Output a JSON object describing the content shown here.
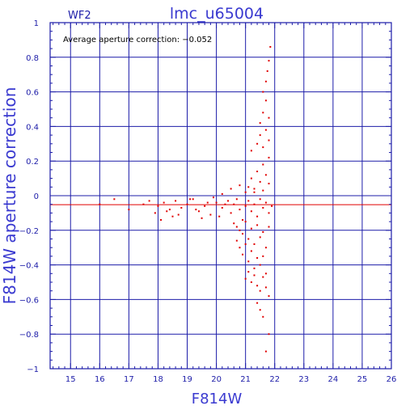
{
  "chart_data": {
    "type": "scatter",
    "title": "lmc_u65004",
    "subtitle": "WF2",
    "annotation": "Average aperture correction: −0.052",
    "xlabel": "F814W",
    "ylabel": "F814W aperture correction",
    "xlim": [
      14.3,
      26
    ],
    "ylim": [
      -1,
      1
    ],
    "x_ticks": [
      15,
      16,
      17,
      18,
      19,
      20,
      21,
      22,
      23,
      24,
      25,
      26
    ],
    "y_ticks": [
      -1,
      -0.8,
      -0.6,
      -0.4,
      -0.2,
      0,
      0.2,
      0.4,
      0.6,
      0.8,
      1
    ],
    "y_tick_labels": [
      "−1",
      "−0.8",
      "−0.6",
      "−0.4",
      "−0.2",
      "0",
      "0.2",
      "0.4",
      "0.6",
      "0.8",
      "1"
    ],
    "grid": true,
    "reference_lines": {
      "average_correction": -0.052,
      "zero": 0,
      "vertical_x": 21
    },
    "colors": {
      "axes": "#1c1ca8",
      "points": "#e00000",
      "average_line": "#e00000"
    },
    "series": [
      {
        "x": [
          16.0,
          16.5,
          17.0,
          17.5,
          17.7,
          17.9,
          18.0,
          18.2,
          18.4,
          18.5,
          18.6,
          18.8,
          19.0,
          19.2,
          19.4,
          19.6,
          19.8,
          20.0,
          20.2,
          20.4,
          20.5,
          20.6,
          20.7,
          20.8,
          20.9,
          21.0,
          21.1,
          21.2,
          21.3,
          21.4,
          21.5,
          21.6,
          21.7,
          21.8,
          21.9,
          18.1,
          18.3,
          18.7,
          19.1,
          19.3,
          19.5,
          19.7,
          19.9,
          20.1,
          20.3,
          20.6,
          20.7,
          20.8,
          20.9,
          21.0,
          21.1,
          21.2,
          21.3,
          21.4,
          21.5,
          21.6,
          21.7,
          21.8,
          20.7,
          20.8,
          20.9,
          21.0,
          21.1,
          21.2,
          21.3,
          21.4,
          21.5,
          21.6,
          21.7,
          21.0,
          21.1,
          21.2,
          21.3,
          21.4,
          21.5,
          21.6,
          21.7,
          21.8,
          21.1,
          21.2,
          21.3,
          21.4,
          21.5,
          21.6,
          21.7,
          21.8,
          21.2,
          21.4,
          21.5,
          21.6,
          21.7,
          21.8,
          21.5,
          21.6,
          21.7,
          21.8,
          21.6,
          21.7,
          21.75,
          21.8,
          21.85,
          21.4,
          21.5,
          21.6,
          21.8,
          20.2,
          20.5,
          20.8,
          21.0,
          21.3,
          21.6,
          21.8,
          21.7
        ],
        "y": [
          -0.05,
          -0.02,
          -0.08,
          -0.05,
          -0.03,
          -0.1,
          -0.06,
          -0.04,
          -0.08,
          -0.12,
          -0.03,
          -0.07,
          -0.05,
          -0.02,
          -0.09,
          -0.06,
          -0.11,
          -0.04,
          -0.07,
          -0.03,
          -0.1,
          -0.05,
          -0.02,
          -0.08,
          -0.14,
          -0.06,
          -0.03,
          -0.09,
          -0.05,
          -0.12,
          -0.02,
          -0.07,
          -0.04,
          -0.1,
          -0.06,
          -0.14,
          -0.09,
          -0.11,
          -0.02,
          -0.08,
          -0.13,
          -0.04,
          -0.01,
          -0.12,
          -0.05,
          -0.16,
          -0.18,
          -0.2,
          -0.22,
          -0.15,
          -0.25,
          -0.19,
          -0.28,
          -0.17,
          -0.24,
          -0.21,
          -0.3,
          -0.18,
          -0.26,
          -0.3,
          -0.34,
          -0.28,
          -0.38,
          -0.32,
          -0.42,
          -0.36,
          -0.4,
          -0.35,
          -0.45,
          -0.48,
          -0.44,
          -0.5,
          -0.46,
          -0.52,
          -0.55,
          -0.47,
          -0.53,
          -0.58,
          0.05,
          0.1,
          0.02,
          0.14,
          0.08,
          0.18,
          0.12,
          0.22,
          0.26,
          0.3,
          0.35,
          0.28,
          0.38,
          0.32,
          0.42,
          0.48,
          0.55,
          0.45,
          0.6,
          0.66,
          0.72,
          0.78,
          0.86,
          -0.62,
          -0.66,
          -0.7,
          -0.8,
          0.01,
          0.04,
          0.06,
          0.02,
          0.04,
          0.03,
          0.07,
          -0.9
        ]
      }
    ]
  }
}
